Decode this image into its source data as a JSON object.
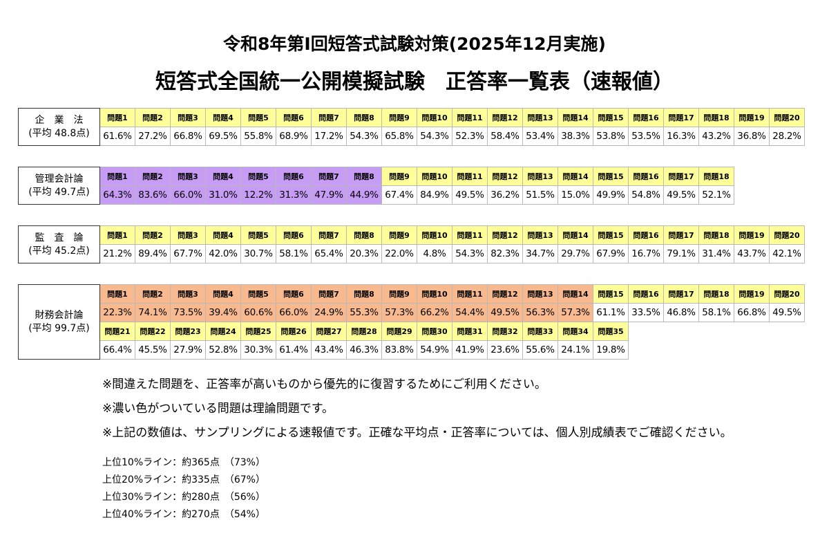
{
  "title1": "令和8年第Ⅰ回短答式試験対策(2025年12月実施)",
  "title2": "短答式全国統一公開模擬試験　正答率一覧表（速報値）",
  "colors": {
    "question_header": "#ffff99",
    "theory_purple": "#c79cf5",
    "theory_orange": "#f8b98e"
  },
  "subjects": [
    {
      "name": "企　業　法",
      "avg": "(平均 48.8点)",
      "theory_color": "",
      "theory_count": 0,
      "questions": [
        "問題1",
        "問題2",
        "問題3",
        "問題4",
        "問題5",
        "問題6",
        "問題7",
        "問題8",
        "問題9",
        "問題10",
        "問題11",
        "問題12",
        "問題13",
        "問題14",
        "問題15",
        "問題16",
        "問題17",
        "問題18",
        "問題19",
        "問題20"
      ],
      "rates": [
        "61.6%",
        "27.2%",
        "66.8%",
        "69.5%",
        "55.8%",
        "68.9%",
        "17.2%",
        "54.3%",
        "65.8%",
        "54.3%",
        "52.3%",
        "58.4%",
        "53.4%",
        "38.3%",
        "53.8%",
        "53.5%",
        "16.3%",
        "43.2%",
        "36.8%",
        "28.2%"
      ]
    },
    {
      "name": "管理会計論",
      "avg": "(平均 49.7点)",
      "theory_color": "purple",
      "theory_count": 8,
      "questions": [
        "問題1",
        "問題2",
        "問題3",
        "問題4",
        "問題5",
        "問題6",
        "問題7",
        "問題8",
        "問題9",
        "問題10",
        "問題11",
        "問題12",
        "問題13",
        "問題14",
        "問題15",
        "問題16",
        "問題17",
        "問題18"
      ],
      "rates": [
        "64.3%",
        "83.6%",
        "66.0%",
        "31.0%",
        "12.2%",
        "31.3%",
        "47.9%",
        "44.9%",
        "67.4%",
        "84.9%",
        "49.5%",
        "36.2%",
        "51.5%",
        "15.0%",
        "49.9%",
        "54.8%",
        "49.5%",
        "52.1%"
      ]
    },
    {
      "name": "監　査　論",
      "avg": "(平均 45.2点)",
      "theory_color": "",
      "theory_count": 0,
      "questions": [
        "問題1",
        "問題2",
        "問題3",
        "問題4",
        "問題5",
        "問題6",
        "問題7",
        "問題8",
        "問題9",
        "問題10",
        "問題11",
        "問題12",
        "問題13",
        "問題14",
        "問題15",
        "問題16",
        "問題17",
        "問題18",
        "問題19",
        "問題20"
      ],
      "rates": [
        "21.2%",
        "89.4%",
        "67.7%",
        "42.0%",
        "30.7%",
        "58.1%",
        "65.4%",
        "20.3%",
        "22.0%",
        "4.8%",
        "54.3%",
        "82.3%",
        "34.7%",
        "29.7%",
        "67.9%",
        "16.7%",
        "79.1%",
        "31.4%",
        "43.7%",
        "42.1%"
      ]
    },
    {
      "name": "財務会計論",
      "avg": "(平均 99.7点)",
      "theory_color": "orange",
      "theory_count": 14,
      "questions": [
        "問題1",
        "問題2",
        "問題3",
        "問題4",
        "問題5",
        "問題6",
        "問題7",
        "問題8",
        "問題9",
        "問題10",
        "問題11",
        "問題12",
        "問題13",
        "問題14",
        "問題15",
        "問題16",
        "問題17",
        "問題18",
        "問題19",
        "問題20",
        "問題21",
        "問題22",
        "問題23",
        "問題24",
        "問題25",
        "問題26",
        "問題27",
        "問題28",
        "問題29",
        "問題30",
        "問題31",
        "問題32",
        "問題33",
        "問題34",
        "問題35"
      ],
      "rates": [
        "22.3%",
        "74.1%",
        "73.5%",
        "39.4%",
        "60.6%",
        "66.0%",
        "24.9%",
        "55.3%",
        "57.3%",
        "66.2%",
        "54.4%",
        "49.5%",
        "56.3%",
        "57.3%",
        "61.1%",
        "33.5%",
        "46.8%",
        "58.1%",
        "66.8%",
        "49.5%",
        "66.4%",
        "45.5%",
        "27.9%",
        "52.8%",
        "30.3%",
        "61.4%",
        "43.4%",
        "46.3%",
        "83.8%",
        "54.9%",
        "41.9%",
        "23.6%",
        "55.6%",
        "24.1%",
        "19.8%"
      ]
    }
  ],
  "notes": [
    "※間違えた問題を、正答率が高いものから優先的に復習するためにご利用ください。",
    "※濃い色がついている問題は理論問題です。",
    "※上記の数値は、サンプリングによる速報値です。正確な平均点・正答率については、個人別成績表でご確認ください。"
  ],
  "lines": [
    "上位10%ライン：約365点　（73%）",
    "上位20%ライン：約335点　（67%）",
    "上位30%ライン：約280点　（56%）",
    "上位40%ライン：約270点　（54%）"
  ]
}
